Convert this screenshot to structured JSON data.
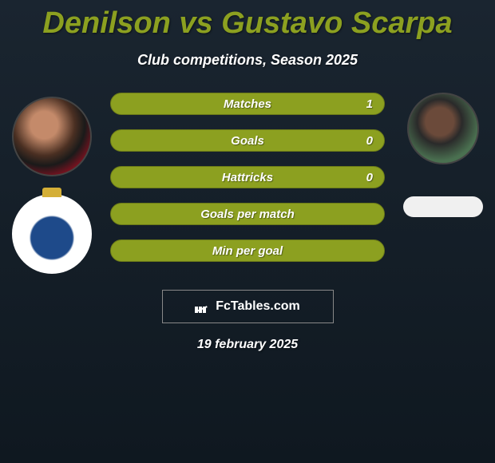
{
  "title": "Denilson vs Gustavo Scarpa",
  "subtitle": "Club competitions, Season 2025",
  "stats": [
    {
      "label": "Matches",
      "value": "1"
    },
    {
      "label": "Goals",
      "value": "0"
    },
    {
      "label": "Hattricks",
      "value": "0"
    },
    {
      "label": "Goals per match",
      "value": ""
    },
    {
      "label": "Min per goal",
      "value": ""
    }
  ],
  "brand": "FcTables.com",
  "date": "19 february 2025",
  "colors": {
    "accent": "#8ca020",
    "background_top": "#1a2530",
    "background_bottom": "#0f1820",
    "text": "#ffffff"
  }
}
